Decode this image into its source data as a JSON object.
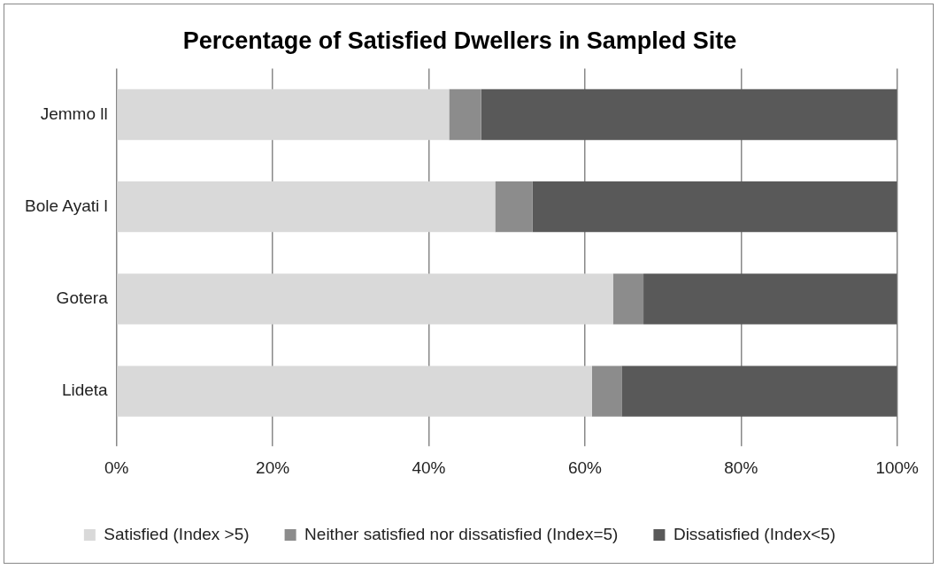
{
  "chart_data": {
    "type": "bar",
    "orientation": "horizontal",
    "stacked": true,
    "title": "Percentage of Satisfied Dwellers in Sampled Site",
    "categories": [
      "Jemmo ll",
      "Bole Ayati l",
      "Gotera",
      "Lideta"
    ],
    "series": [
      {
        "name": "Satisfied (Index >5)",
        "color": "#d9d9d9",
        "values": [
          42.6,
          48.5,
          63.6,
          60.9
        ]
      },
      {
        "name": "Neither satisfied nor dissatisfied (Index=5)",
        "color": "#8c8c8c",
        "values": [
          4.1,
          4.8,
          3.9,
          3.8
        ]
      },
      {
        "name": "Dissatisfied (Index<5)",
        "color": "#595959",
        "values": [
          53.3,
          46.7,
          32.5,
          35.3
        ]
      }
    ],
    "xlim": [
      0,
      100
    ],
    "xticks": [
      {
        "value": 0,
        "label": "0%"
      },
      {
        "value": 20,
        "label": "20%"
      },
      {
        "value": 40,
        "label": "40%"
      },
      {
        "value": 60,
        "label": "60%"
      },
      {
        "value": 80,
        "label": "80%"
      },
      {
        "value": 100,
        "label": "100%"
      }
    ],
    "grid": "x",
    "legend": "bottom"
  }
}
